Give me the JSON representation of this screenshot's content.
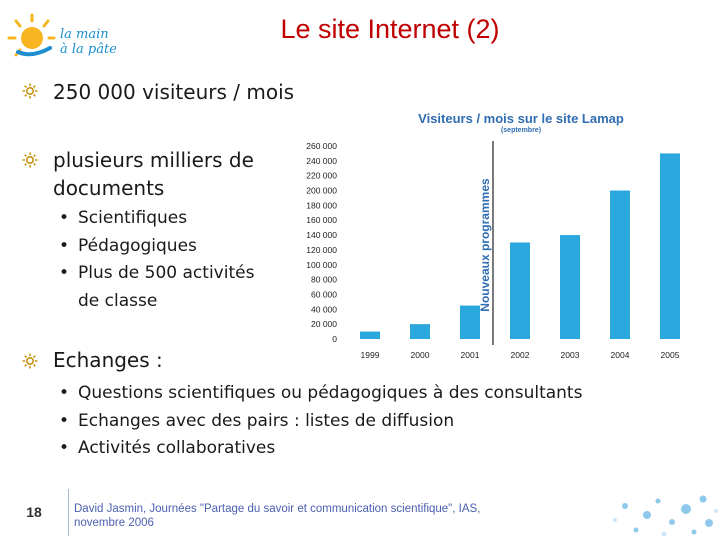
{
  "logo": {
    "line1": "la main",
    "line2": "à la pâte"
  },
  "title": "Le site Internet (2)",
  "bullets": {
    "visitors": "250 000 visiteurs / mois",
    "docs_line1": "plusieurs milliers de",
    "docs_line2": "documents",
    "doc_items": [
      "Scientifiques",
      "Pédagogiques",
      "Plus de 500 activités",
      "de classe"
    ],
    "exchanges": "Echanges :",
    "exchange_items": [
      "Questions scientifiques ou pédagogiques à des consultants",
      "Echanges avec des pairs : listes de diffusion",
      "Activités collaboratives"
    ]
  },
  "footer": {
    "slide_number": "18",
    "line1": "David Jasmin, Journées \"Partage du savoir et communication scientifique\", IAS,",
    "line2": "novembre 2006"
  },
  "colors": {
    "title": "#c00000",
    "bar": "#2aa7dc",
    "chart_title": "#2f6db0",
    "annotation": "#2f6db0"
  },
  "chart_data": {
    "type": "bar",
    "title": "Visiteurs / mois sur le site Lamap",
    "subtitle": "(septembre)",
    "categories": [
      "1999",
      "2000",
      "2001",
      "2002",
      "2003",
      "2004",
      "2005"
    ],
    "values": [
      10000,
      20000,
      45000,
      130000,
      140000,
      200000,
      250000
    ],
    "ylim": [
      0,
      260000
    ],
    "yticks": [
      "0",
      "20 000",
      "40 000",
      "60 000",
      "80 000",
      "100 000",
      "120 000",
      "140 000",
      "160 000",
      "180 000",
      "200 000",
      "220 000",
      "240 000",
      "260 000"
    ],
    "annotation": "Nouveaux programmes",
    "grid": false
  }
}
